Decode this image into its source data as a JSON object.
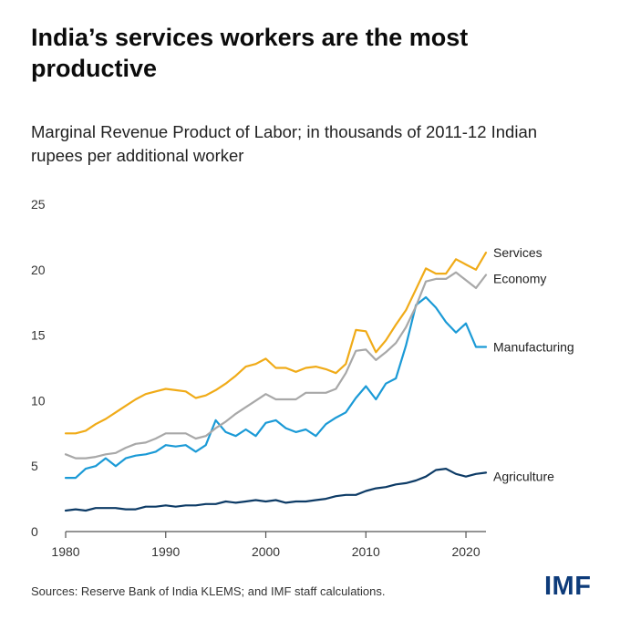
{
  "title": "India’s services workers are the most productive",
  "subtitle": "Marginal Revenue Product of Labor; in thousands of 2011-12 Indian rupees per additional worker",
  "source": "Sources: Reserve Bank of India KLEMS; and IMF staff calculations.",
  "logo_text": "IMF",
  "chart_data": {
    "type": "line",
    "title": "India’s services workers are the most productive",
    "subtitle": "Marginal Revenue Product of Labor; in thousands of 2011-12 Indian rupees per additional worker",
    "xlabel": "",
    "ylabel": "",
    "xlim": [
      1980,
      2022
    ],
    "ylim": [
      0,
      25
    ],
    "x_ticks": [
      1980,
      1990,
      2000,
      2010,
      2020
    ],
    "y_ticks": [
      0,
      5,
      10,
      15,
      20,
      25
    ],
    "grid": false,
    "legend": "direct labels at right end of lines",
    "x": [
      1980,
      1981,
      1982,
      1983,
      1984,
      1985,
      1986,
      1987,
      1988,
      1989,
      1990,
      1991,
      1992,
      1993,
      1994,
      1995,
      1996,
      1997,
      1998,
      1999,
      2000,
      2001,
      2002,
      2003,
      2004,
      2005,
      2006,
      2007,
      2008,
      2009,
      2010,
      2011,
      2012,
      2013,
      2014,
      2015,
      2016,
      2017,
      2018,
      2019,
      2020,
      2021,
      2022
    ],
    "series": [
      {
        "name": "Services",
        "color": "#f0ab18",
        "values": [
          7.5,
          7.5,
          7.7,
          8.2,
          8.6,
          9.1,
          9.6,
          10.1,
          10.5,
          10.7,
          10.9,
          10.8,
          10.7,
          10.2,
          10.4,
          10.8,
          11.3,
          11.9,
          12.6,
          12.8,
          13.2,
          12.5,
          12.5,
          12.2,
          12.5,
          12.6,
          12.4,
          12.1,
          12.8,
          15.4,
          15.3,
          13.7,
          14.6,
          15.8,
          16.9,
          18.5,
          20.1,
          19.7,
          19.7,
          20.8,
          20.4,
          20.0,
          21.3
        ]
      },
      {
        "name": "Economy",
        "color": "#a8a8a8",
        "values": [
          5.9,
          5.6,
          5.6,
          5.7,
          5.9,
          6.0,
          6.4,
          6.7,
          6.8,
          7.1,
          7.5,
          7.5,
          7.5,
          7.1,
          7.3,
          7.9,
          8.4,
          9.0,
          9.5,
          10.0,
          10.5,
          10.1,
          10.1,
          10.1,
          10.6,
          10.6,
          10.6,
          10.9,
          12.1,
          13.8,
          13.9,
          13.1,
          13.7,
          14.4,
          15.6,
          17.2,
          19.1,
          19.3,
          19.3,
          19.8,
          19.2,
          18.6,
          19.6
        ]
      },
      {
        "name": "Manufacturing",
        "color": "#1b9ad6",
        "values": [
          4.1,
          4.1,
          4.8,
          5.0,
          5.6,
          5.0,
          5.6,
          5.8,
          5.9,
          6.1,
          6.6,
          6.5,
          6.6,
          6.1,
          6.6,
          8.5,
          7.6,
          7.3,
          7.8,
          7.3,
          8.3,
          8.5,
          7.9,
          7.6,
          7.8,
          7.3,
          8.2,
          8.7,
          9.1,
          10.2,
          11.1,
          10.1,
          11.3,
          11.7,
          14.2,
          17.3,
          17.9,
          17.1,
          16.0,
          15.2,
          15.9,
          14.1,
          14.1
        ]
      },
      {
        "name": "Agriculture",
        "color": "#0d3b66",
        "values": [
          1.6,
          1.7,
          1.6,
          1.8,
          1.8,
          1.8,
          1.7,
          1.7,
          1.9,
          1.9,
          2.0,
          1.9,
          2.0,
          2.0,
          2.1,
          2.1,
          2.3,
          2.2,
          2.3,
          2.4,
          2.3,
          2.4,
          2.2,
          2.3,
          2.3,
          2.4,
          2.5,
          2.7,
          2.8,
          2.8,
          3.1,
          3.3,
          3.4,
          3.6,
          3.7,
          3.9,
          4.2,
          4.7,
          4.8,
          4.4,
          4.2,
          4.4,
          4.5
        ]
      }
    ]
  }
}
